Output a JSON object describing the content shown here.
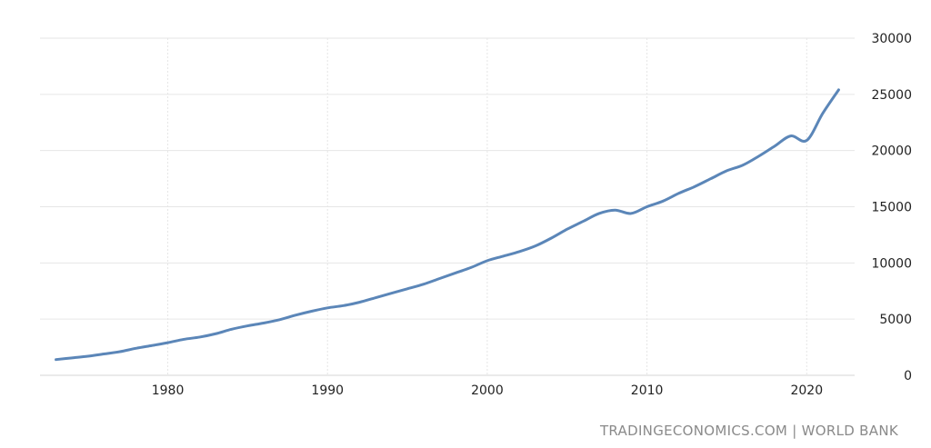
{
  "source_caption": "TRADINGECONOMICS.COM | WORLD BANK",
  "colors": {
    "series": "#5b86b8",
    "grid": "#e6e6e6",
    "text": "#222222",
    "caption": "#8a8a8a"
  },
  "chart_data": {
    "type": "line",
    "title": "",
    "xlabel": "",
    "ylabel": "",
    "xlim": [
      1972,
      2023
    ],
    "ylim": [
      0,
      30000
    ],
    "x_ticks": [
      1980,
      1990,
      2000,
      2010,
      2020
    ],
    "y_ticks": [
      0,
      5000,
      10000,
      15000,
      20000,
      25000,
      30000
    ],
    "y_axis_side": "right",
    "grid": true,
    "legend": "none",
    "series": [
      {
        "color": "#5b86b8",
        "x": [
          1973,
          1974,
          1975,
          1976,
          1977,
          1978,
          1979,
          1980,
          1981,
          1982,
          1983,
          1984,
          1985,
          1986,
          1987,
          1988,
          1989,
          1990,
          1991,
          1992,
          1993,
          1994,
          1995,
          1996,
          1997,
          1998,
          1999,
          2000,
          2001,
          2002,
          2003,
          2004,
          2005,
          2006,
          2007,
          2008,
          2009,
          2010,
          2011,
          2012,
          2013,
          2014,
          2015,
          2016,
          2017,
          2018,
          2019,
          2020,
          2021,
          2022
        ],
        "y": [
          1400,
          1550,
          1700,
          1900,
          2100,
          2400,
          2650,
          2900,
          3200,
          3400,
          3700,
          4100,
          4400,
          4650,
          4950,
          5350,
          5700,
          6000,
          6200,
          6500,
          6900,
          7300,
          7700,
          8100,
          8600,
          9100,
          9600,
          10200,
          10600,
          11000,
          11500,
          12200,
          13000,
          13700,
          14400,
          14700,
          14400,
          15000,
          15500,
          16200,
          16800,
          17500,
          18200,
          18700,
          19500,
          20400,
          21300,
          20900,
          23300,
          25400
        ]
      }
    ]
  }
}
